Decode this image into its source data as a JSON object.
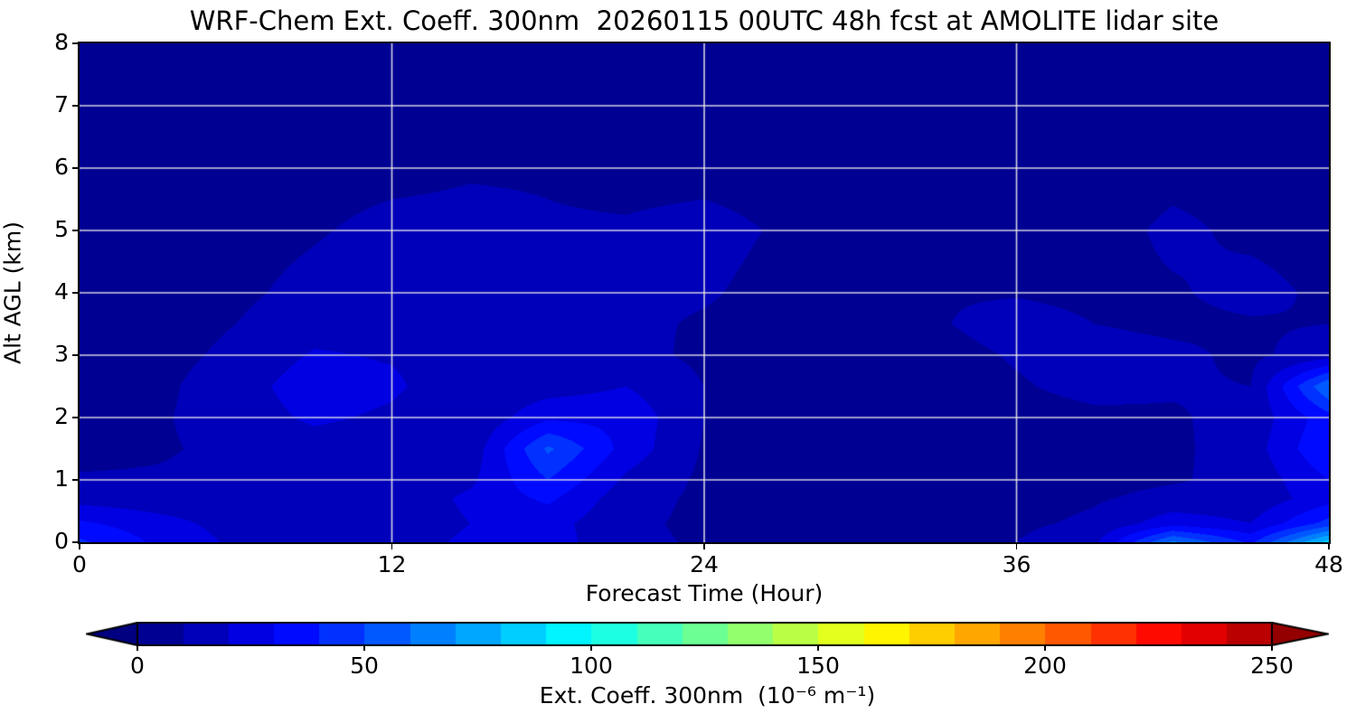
{
  "chart_data": {
    "type": "heatmap",
    "title": "WRF-Chem Ext. Coeff. 300nm  20260115 00UTC 48h fcst at AMOLITE lidar site",
    "xlabel": "Forecast Time (Hour)",
    "ylabel": "Alt AGL (km)",
    "xlim": [
      0,
      48
    ],
    "ylim": [
      0,
      8
    ],
    "x_ticks": [
      0,
      12,
      24,
      36,
      48
    ],
    "y_ticks": [
      0,
      1,
      2,
      3,
      4,
      5,
      6,
      7,
      8
    ],
    "x_gridlines": [
      12,
      24,
      36
    ],
    "y_gridlines": [
      1,
      2,
      3,
      4,
      5,
      6,
      7
    ],
    "grid_on": true,
    "grid_color": "#e8e8e8",
    "background_color": "#000093",
    "colorbar": {
      "label": "Ext. Coeff. 300nm  (10⁻⁶ m⁻¹)",
      "ticks": [
        0,
        50,
        100,
        150,
        200,
        250
      ],
      "tick_min": 0,
      "tick_max": 250,
      "vmin": 0,
      "vmax": 260,
      "level_step": 10,
      "extend": "both",
      "colormap": "jet",
      "under_color": "#000080",
      "over_color": "#940000"
    },
    "x_hours": [
      0,
      3,
      6,
      9,
      12,
      15,
      18,
      21,
      24,
      27,
      30,
      33,
      36,
      39,
      42,
      45,
      48
    ],
    "altitudes_km": [
      0,
      0.3,
      0.7,
      1,
      1.5,
      2,
      2.5,
      3,
      3.5,
      4,
      5,
      6,
      7,
      8
    ],
    "values_units": "10^-6 m^-1",
    "values": [
      [
        42,
        28,
        18,
        15,
        15,
        22,
        25,
        12,
        9,
        8,
        7,
        8,
        10,
        18,
        62,
        38,
        85
      ],
      [
        32,
        24,
        16,
        13,
        13,
        20,
        24,
        12,
        8,
        7,
        6,
        7,
        8,
        12,
        26,
        20,
        44
      ],
      [
        16,
        14,
        13,
        12,
        13,
        22,
        32,
        14,
        8,
        6,
        5,
        5,
        6,
        9,
        13,
        13,
        26
      ],
      [
        11,
        11,
        12,
        13,
        13,
        18,
        40,
        18,
        8,
        6,
        5,
        5,
        5,
        7,
        9,
        13,
        30
      ],
      [
        7,
        9,
        12,
        15,
        13,
        13,
        52,
        26,
        9,
        6,
        5,
        5,
        5,
        6,
        8,
        15,
        40
      ],
      [
        6,
        9,
        14,
        22,
        18,
        11,
        28,
        27,
        10,
        6,
        5,
        5,
        6,
        8,
        9,
        13,
        36
      ],
      [
        5,
        8,
        15,
        26,
        22,
        12,
        15,
        20,
        10,
        6,
        5,
        6,
        9,
        13,
        11,
        10,
        60
      ],
      [
        5,
        7,
        12,
        21,
        19,
        14,
        13,
        13,
        8,
        5,
        5,
        6,
        11,
        14,
        12,
        8,
        15
      ],
      [
        4,
        6,
        10,
        16,
        18,
        15,
        13,
        12,
        9,
        6,
        5,
        9,
        15,
        10,
        8,
        9,
        10
      ],
      [
        4,
        5,
        8,
        13,
        17,
        15,
        13,
        12,
        11,
        7,
        5,
        9,
        9,
        7,
        9,
        13,
        8
      ],
      [
        4,
        4,
        6,
        9,
        13,
        13,
        11,
        11,
        13,
        9,
        5,
        9,
        6,
        6,
        12,
        8,
        6
      ],
      [
        3,
        3,
        4,
        6,
        7,
        9,
        9,
        7,
        7,
        6,
        4,
        4,
        4,
        4,
        7,
        6,
        4
      ],
      [
        3,
        3,
        3,
        4,
        4,
        5,
        5,
        5,
        4,
        4,
        3,
        3,
        3,
        3,
        4,
        4,
        3
      ],
      [
        3,
        3,
        3,
        3,
        3,
        3,
        3,
        3,
        3,
        3,
        3,
        3,
        3,
        3,
        3,
        3,
        3
      ]
    ]
  }
}
